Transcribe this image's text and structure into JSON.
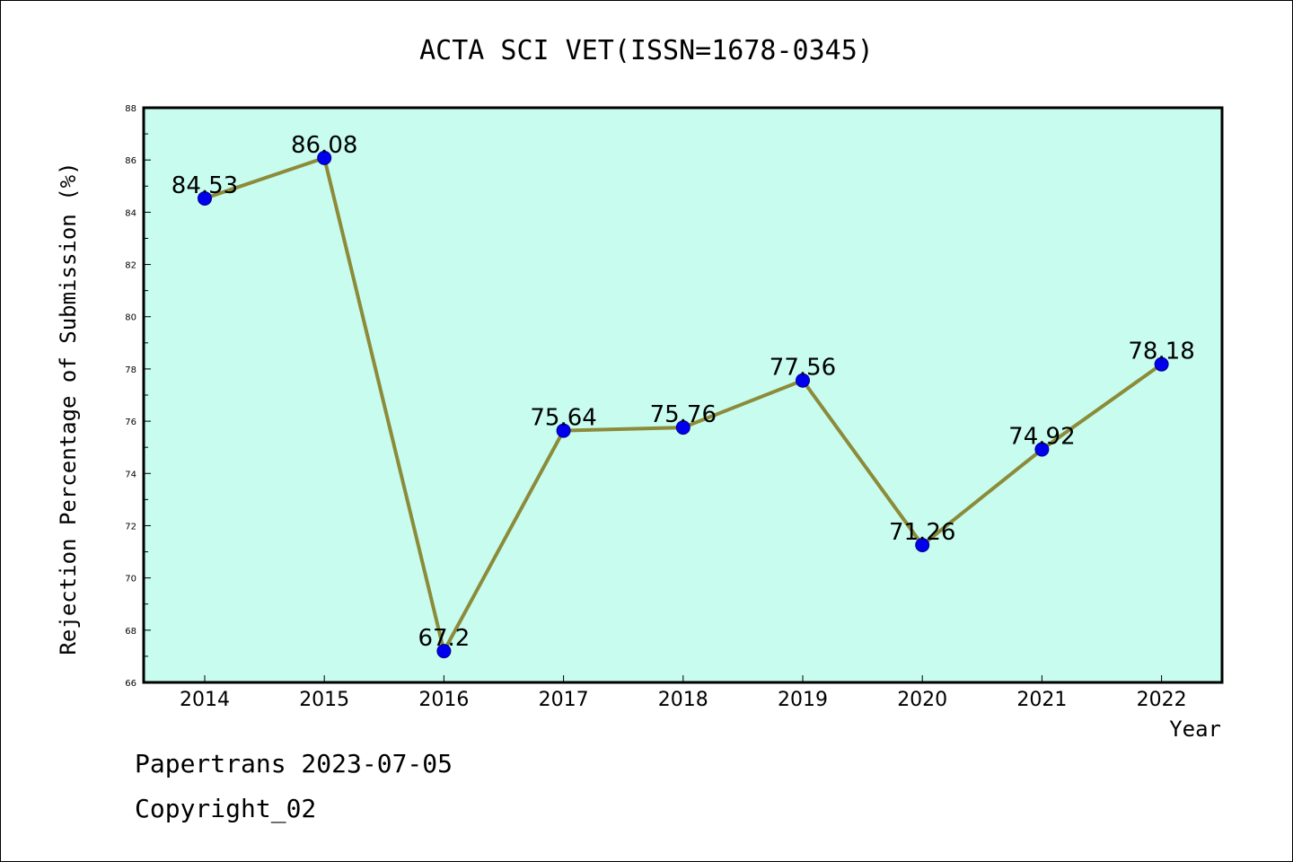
{
  "chart_data": {
    "type": "line",
    "title": "ACTA SCI VET(ISSN=1678-0345)",
    "xlabel": "Year",
    "ylabel": "Rejection Percentage of Submission (%)",
    "categories": [
      "2014",
      "2015",
      "2016",
      "2017",
      "2018",
      "2019",
      "2020",
      "2021",
      "2022"
    ],
    "values": [
      84.53,
      86.08,
      67.2,
      75.64,
      75.76,
      77.56,
      71.26,
      74.92,
      78.18
    ],
    "data_labels": [
      "84.53",
      "86.08",
      "67.2",
      "75.64",
      "75.76",
      "77.56",
      "71.26",
      "74.92",
      "78.18"
    ],
    "ylim": [
      66,
      88
    ],
    "y_ticks": [
      "66",
      "68",
      "70",
      "72",
      "74",
      "76",
      "78",
      "80",
      "82",
      "84",
      "86",
      "88"
    ],
    "grid": false,
    "colors": {
      "plot_background": "#c8fcee",
      "line": "#8b8b3a",
      "marker_fill": "#0000ee",
      "marker_edge": "#00008b"
    }
  },
  "footer": {
    "line1": "Papertrans 2023-07-05",
    "line2": "Copyright_02"
  }
}
